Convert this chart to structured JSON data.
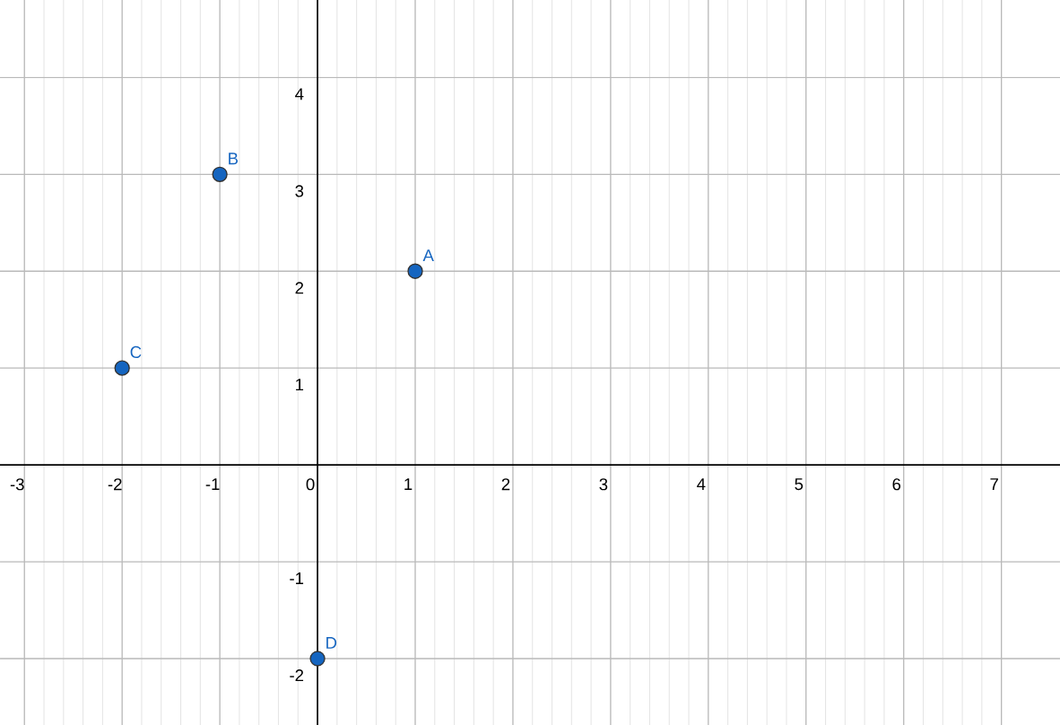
{
  "chart_data": {
    "type": "scatter",
    "x": [
      1,
      -1,
      -2,
      0
    ],
    "values": [
      2,
      3,
      1,
      -2
    ],
    "color": "#1565c0",
    "marker": "circle",
    "grid": true,
    "xlim": [
      -3.25,
      7.6
    ],
    "ylim": [
      -2.69,
      4.8
    ],
    "xticks": [
      -3,
      -2,
      -1,
      0,
      1,
      2,
      3,
      4,
      5,
      6,
      7
    ],
    "yticks": [
      -2,
      -1,
      1,
      2,
      3,
      4
    ],
    "annotations": [
      {
        "text": "A",
        "x": 1,
        "y": 2
      },
      {
        "text": "B",
        "x": -1,
        "y": 3
      },
      {
        "text": "C",
        "x": -2,
        "y": 1
      },
      {
        "text": "D",
        "x": 0,
        "y": -2
      }
    ]
  }
}
